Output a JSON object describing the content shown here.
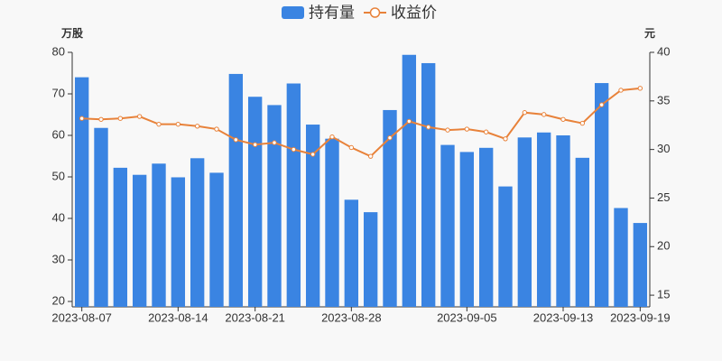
{
  "chart_data": {
    "type": "bar_line",
    "y_axis_label": "万股",
    "y2_axis_label": "元",
    "categories": [
      "2023-08-07",
      null,
      null,
      null,
      null,
      "2023-08-14",
      null,
      null,
      null,
      "2023-08-21",
      null,
      null,
      null,
      null,
      "2023-08-28",
      null,
      null,
      null,
      null,
      null,
      "2023-09-05",
      null,
      null,
      null,
      null,
      "2023-09-13",
      null,
      null,
      null,
      "2023-09-19"
    ],
    "series": [
      {
        "name": "持有量",
        "type": "bar",
        "color": "#3a84e2",
        "values": [
          74.0,
          61.8,
          52.2,
          50.5,
          53.2,
          49.9,
          54.5,
          51.0,
          74.8,
          69.3,
          67.3,
          72.5,
          62.6,
          59.2,
          44.5,
          41.5,
          66.1,
          79.4,
          77.4,
          57.7,
          56.0,
          57.0,
          47.7,
          59.5,
          60.7,
          60.0,
          54.6,
          72.6,
          42.5,
          38.9
        ]
      },
      {
        "name": "收益价",
        "type": "line",
        "axis": "y2",
        "color": "#e8823a",
        "values": [
          33.2,
          33.1,
          33.2,
          33.4,
          32.6,
          32.6,
          32.4,
          32.1,
          31.0,
          30.5,
          30.7,
          30.0,
          29.5,
          31.3,
          30.2,
          29.3,
          31.2,
          32.9,
          32.3,
          32.0,
          32.1,
          31.8,
          31.1,
          33.8,
          33.6,
          33.1,
          32.7,
          34.6,
          36.1,
          36.3
        ]
      }
    ],
    "ylim": [
      18.7,
      80
    ],
    "yticks": [
      20,
      30,
      40,
      50,
      60,
      70,
      80
    ],
    "y2lim": [
      13.8,
      40
    ],
    "y2ticks": [
      15,
      20,
      25,
      30,
      35,
      40
    ],
    "grid": false
  }
}
